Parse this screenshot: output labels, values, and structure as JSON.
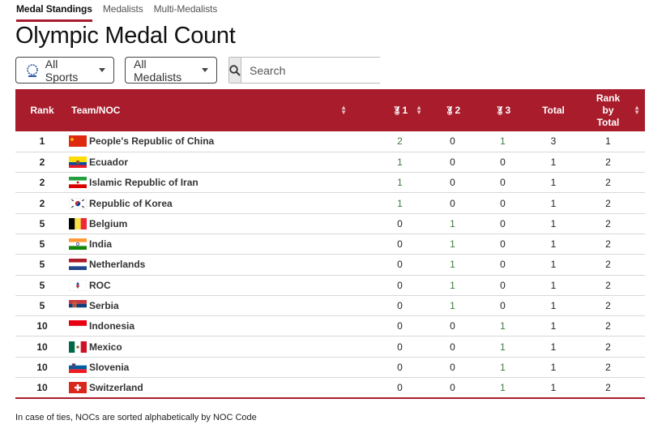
{
  "tabs": [
    {
      "label": "Medal Standings",
      "active": true
    },
    {
      "label": "Medalists",
      "active": false
    },
    {
      "label": "Multi-Medalists",
      "active": false
    }
  ],
  "page_title": "Olympic Medal Count",
  "controls": {
    "sports_label": "All Sports",
    "medalists_label": "All Medalists",
    "search_placeholder": "Search"
  },
  "table": {
    "headers": {
      "rank": "Rank",
      "team": "Team/NOC",
      "gold": "1",
      "silver": "2",
      "bronze": "3",
      "total": "Total",
      "rank_by_total": "Rank by Total"
    },
    "rows": [
      {
        "rank": "1",
        "team": "People's Republic of China",
        "flag": "china",
        "gold": "2",
        "silver": "0",
        "bronze": "1",
        "total": "3",
        "rank_total": "1"
      },
      {
        "rank": "2",
        "team": "Ecuador",
        "flag": "ecuador",
        "gold": "1",
        "silver": "0",
        "bronze": "0",
        "total": "1",
        "rank_total": "2"
      },
      {
        "rank": "2",
        "team": "Islamic Republic of Iran",
        "flag": "iran",
        "gold": "1",
        "silver": "0",
        "bronze": "0",
        "total": "1",
        "rank_total": "2"
      },
      {
        "rank": "2",
        "team": "Republic of Korea",
        "flag": "korea",
        "gold": "1",
        "silver": "0",
        "bronze": "0",
        "total": "1",
        "rank_total": "2"
      },
      {
        "rank": "5",
        "team": "Belgium",
        "flag": "belgium",
        "gold": "0",
        "silver": "1",
        "bronze": "0",
        "total": "1",
        "rank_total": "2"
      },
      {
        "rank": "5",
        "team": "India",
        "flag": "india",
        "gold": "0",
        "silver": "1",
        "bronze": "0",
        "total": "1",
        "rank_total": "2"
      },
      {
        "rank": "5",
        "team": "Netherlands",
        "flag": "netherlands",
        "gold": "0",
        "silver": "1",
        "bronze": "0",
        "total": "1",
        "rank_total": "2"
      },
      {
        "rank": "5",
        "team": "ROC",
        "flag": "roc",
        "gold": "0",
        "silver": "1",
        "bronze": "0",
        "total": "1",
        "rank_total": "2"
      },
      {
        "rank": "5",
        "team": "Serbia",
        "flag": "serbia",
        "gold": "0",
        "silver": "1",
        "bronze": "0",
        "total": "1",
        "rank_total": "2"
      },
      {
        "rank": "10",
        "team": "Indonesia",
        "flag": "indonesia",
        "gold": "0",
        "silver": "0",
        "bronze": "1",
        "total": "1",
        "rank_total": "2"
      },
      {
        "rank": "10",
        "team": "Mexico",
        "flag": "mexico",
        "gold": "0",
        "silver": "0",
        "bronze": "1",
        "total": "1",
        "rank_total": "2"
      },
      {
        "rank": "10",
        "team": "Slovenia",
        "flag": "slovenia",
        "gold": "0",
        "silver": "0",
        "bronze": "1",
        "total": "1",
        "rank_total": "2"
      },
      {
        "rank": "10",
        "team": "Switzerland",
        "flag": "switzerland",
        "gold": "0",
        "silver": "0",
        "bronze": "1",
        "total": "1",
        "rank_total": "2"
      }
    ]
  },
  "footnote": "In case of ties, NOCs are sorted alphabetically by NOC Code",
  "colors": {
    "accent": "#a81c2c",
    "medal_value": "#3b7a3b"
  },
  "icons": {
    "sports_dropdown": "olympic-emblem-icon",
    "search": "magnifier-icon",
    "sort": "sort-arrows-icon",
    "medal": "medal-icon"
  }
}
